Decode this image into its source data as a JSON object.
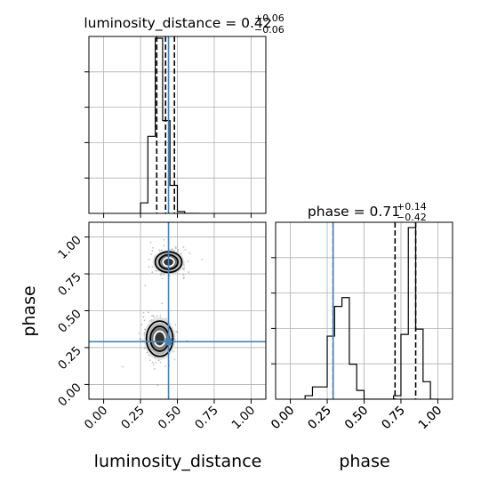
{
  "chart_data": [
    {
      "type": "histogram",
      "panel": "top-left",
      "title_param": "luminosity_distance",
      "title_value": "0.42",
      "title_plus": "+0.06",
      "title_minus": "−0.06",
      "xlim": [
        -0.1,
        1.1
      ],
      "grid": true,
      "show_x_ticklabels": false,
      "show_y_ticklabels": false,
      "yticks_rel": [
        0.2,
        0.4,
        0.6,
        0.8
      ],
      "bin_edges": [
        0.25,
        0.3,
        0.35,
        0.4,
        0.45,
        0.5,
        0.55,
        0.6,
        0.65
      ],
      "counts": [
        0.06,
        0.44,
        1.0,
        0.53,
        0.16,
        0.01,
        0.0,
        0.0
      ],
      "quantiles": [
        0.36,
        0.42,
        0.48
      ],
      "truth": 0.44,
      "truth_color": "#4682b4"
    },
    {
      "type": "scatter_contour",
      "panel": "bottom-left",
      "xlabel": "luminosity_distance",
      "ylabel": "phase",
      "xlim": [
        -0.1,
        1.1
      ],
      "ylim": [
        -0.1,
        1.1
      ],
      "grid": true,
      "xticks": [
        "0.00",
        "0.25",
        "0.50",
        "0.75",
        "1.00"
      ],
      "yticks": [
        "0.00",
        "0.25",
        "0.50",
        "0.75",
        "1.00"
      ],
      "modes": [
        {
          "x": 0.44,
          "y": 0.83,
          "sx": 0.045,
          "sy": 0.035
        },
        {
          "x": 0.38,
          "y": 0.31,
          "sx": 0.045,
          "sy": 0.06
        }
      ],
      "truth": {
        "x": 0.44,
        "y": 0.29
      },
      "truth_color": "#4682b4"
    },
    {
      "type": "histogram",
      "panel": "bottom-right",
      "title_param": "phase",
      "title_value": "0.71",
      "title_plus": "+0.14",
      "title_minus": "−0.42",
      "xlabel": "phase",
      "xlim": [
        -0.1,
        1.1
      ],
      "grid": true,
      "xticks": [
        "0.00",
        "0.25",
        "0.50",
        "0.75",
        "1.00"
      ],
      "show_y_ticklabels": false,
      "yticks_rel": [
        0.2,
        0.4,
        0.6,
        0.8
      ],
      "bin_edges": [
        0.1,
        0.15,
        0.2,
        0.25,
        0.3,
        0.35,
        0.4,
        0.45,
        0.5,
        0.55,
        0.6,
        0.65,
        0.7,
        0.75,
        0.8,
        0.85,
        0.9,
        0.95,
        1.0
      ],
      "counts": [
        0.02,
        0.07,
        0.07,
        0.36,
        0.53,
        0.58,
        0.2,
        0.05,
        0.0,
        0.0,
        0.0,
        0.0,
        0.02,
        0.37,
        0.98,
        0.4,
        0.1,
        0.0
      ],
      "quantiles": [
        0.29,
        0.71,
        0.85
      ],
      "truth": 0.29,
      "truth_color": "#4682b4"
    }
  ]
}
